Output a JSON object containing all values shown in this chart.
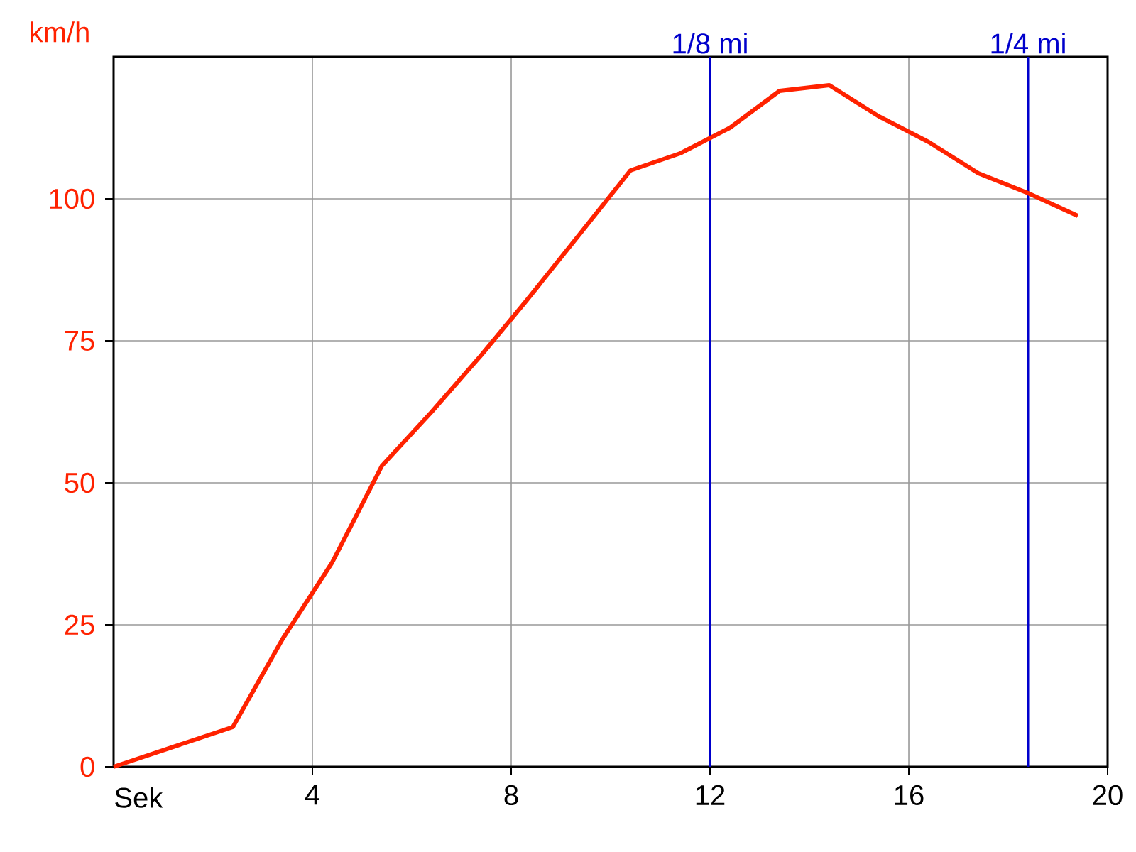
{
  "chart_data": {
    "type": "line",
    "xlabel": "Sek",
    "ylabel": "km/h",
    "x": [
      0,
      2.4,
      3.4,
      4.4,
      5.4,
      6.4,
      7.4,
      8.3,
      9.4,
      10.4,
      11.4,
      12.4,
      13.4,
      14.4,
      15.4,
      16.4,
      17.4,
      18.4,
      19.4
    ],
    "series": [
      {
        "color": "#ff2200",
        "values": [
          0,
          7,
          22.5,
          36,
          53,
          62.5,
          72.5,
          82,
          94,
          105,
          108,
          112.5,
          119,
          120,
          114.5,
          110,
          104.5,
          101,
          97
        ]
      }
    ],
    "xlim": [
      0,
      20
    ],
    "ylim": [
      0,
      125
    ],
    "xticks": [
      4,
      8,
      12,
      16,
      20
    ],
    "yticks": [
      0,
      25,
      50,
      75,
      100
    ],
    "grid": true,
    "ref_lines": [
      {
        "axis": "x",
        "value": 12,
        "label": "1/8 mi",
        "color": "#0000cc"
      },
      {
        "axis": "x",
        "value": 18.4,
        "label": "1/4 mi",
        "color": "#0000cc"
      }
    ]
  }
}
